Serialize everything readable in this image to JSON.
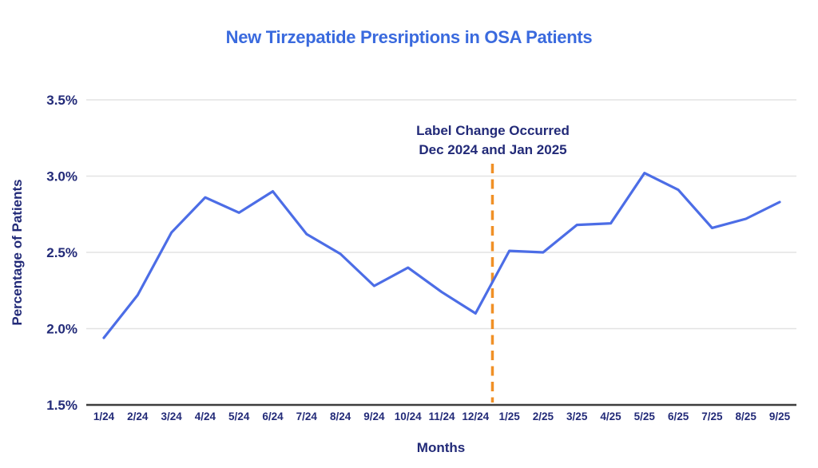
{
  "chart_data": {
    "type": "line",
    "title": "New Tirzepatide Presriptions in OSA Patients",
    "xlabel": "Months",
    "ylabel": "Percentage of Patients",
    "categories": [
      "1/24",
      "2/24",
      "3/24",
      "4/24",
      "5/24",
      "6/24",
      "7/24",
      "8/24",
      "9/24",
      "10/24",
      "11/24",
      "12/24",
      "1/25",
      "2/25",
      "3/25",
      "4/25",
      "5/25",
      "6/25",
      "7/25",
      "8/25",
      "9/25"
    ],
    "values": [
      1.94,
      2.22,
      2.63,
      2.86,
      2.76,
      2.9,
      2.62,
      2.49,
      2.28,
      2.4,
      2.24,
      2.1,
      2.51,
      2.5,
      2.68,
      2.69,
      3.02,
      2.91,
      2.66,
      2.72,
      2.83
    ],
    "ylim": [
      1.5,
      3.5
    ],
    "ytick_values": [
      1.5,
      2.0,
      2.5,
      3.0,
      3.5
    ],
    "ytick_labels": [
      "1.5%",
      "2.0%",
      "2.5%",
      "3.0%",
      "3.5%"
    ],
    "grid": "horizontal",
    "legend": "none",
    "annotation": {
      "line1": "Label Change Occurred",
      "line2": "Dec 2024 and Jan 2025",
      "line_between": [
        "12/24",
        "1/25"
      ],
      "line_style": "dashed"
    },
    "colors": {
      "title": "#3a6ade",
      "axis_text": "#222a78",
      "series_line": "#4c6de6",
      "reference_line": "#f09026",
      "gridline": "#e3e3e3",
      "axis_line": "#3d3d3d",
      "background": "#ffffff"
    }
  }
}
